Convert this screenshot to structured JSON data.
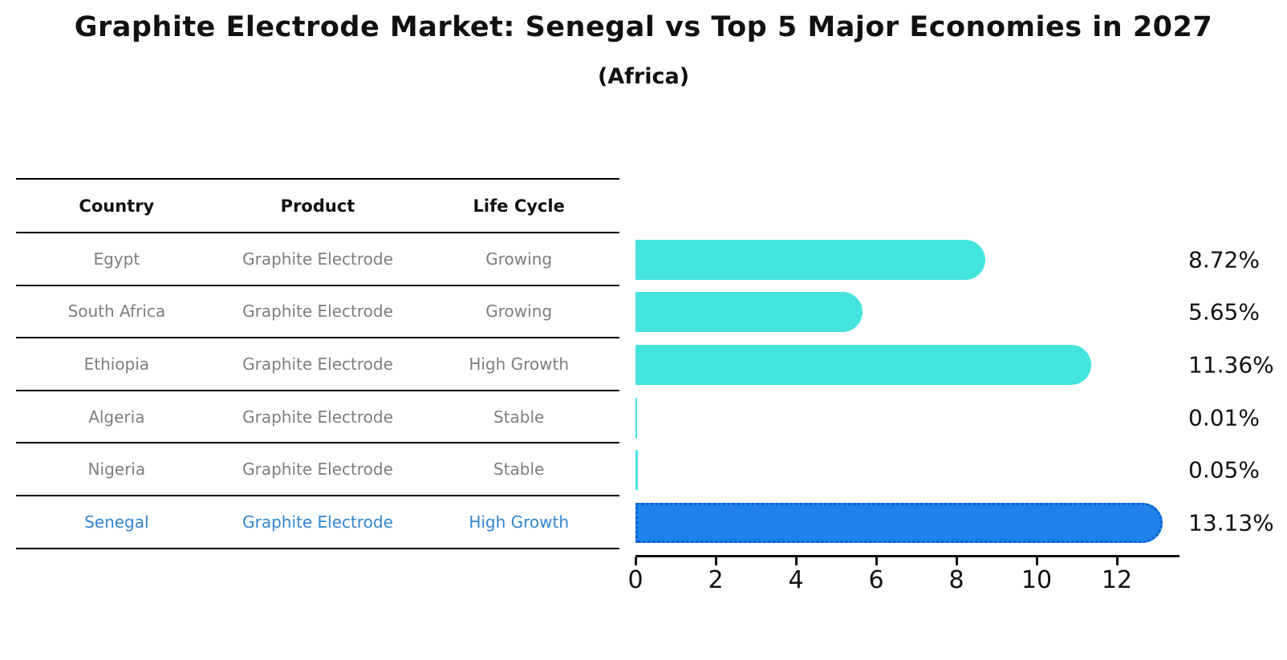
{
  "title": "Graphite Electrode Market: Senegal vs Top 5 Major Economies in 2027",
  "subtitle": "(Africa)",
  "table": {
    "headers": {
      "country": "Country",
      "product": "Product",
      "life_cycle": "Life Cycle"
    },
    "rows": [
      {
        "country": "Egypt",
        "product": "Graphite Electrode",
        "life_cycle": "Growing"
      },
      {
        "country": "South Africa",
        "product": "Graphite Electrode",
        "life_cycle": "Growing"
      },
      {
        "country": "Ethiopia",
        "product": "Graphite Electrode",
        "life_cycle": "High Growth"
      },
      {
        "country": "Algeria",
        "product": "Graphite Electrode",
        "life_cycle": "Stable"
      },
      {
        "country": "Nigeria",
        "product": "Graphite Electrode",
        "life_cycle": "Stable"
      },
      {
        "country": "Senegal",
        "product": "Graphite Electrode",
        "life_cycle": "High Growth"
      }
    ],
    "highlight_row": 5
  },
  "chart_data": {
    "type": "bar",
    "orientation": "horizontal",
    "title": "Graphite Electrode Market: Senegal vs Top 5 Major Economies in 2027",
    "subtitle": "(Africa)",
    "categories": [
      "Egypt",
      "South Africa",
      "Ethiopia",
      "Algeria",
      "Nigeria",
      "Senegal"
    ],
    "values": [
      8.72,
      5.65,
      11.36,
      0.01,
      0.05,
      13.13
    ],
    "labels": [
      "8.72%",
      "5.65%",
      "11.36%",
      "0.01%",
      "0.05%",
      "13.13%"
    ],
    "x_ticks": [
      0,
      2,
      4,
      6,
      8,
      10,
      12
    ],
    "xlim": [
      0,
      13.56
    ],
    "grid": false,
    "legend": "none",
    "highlight_index": 5,
    "bar_color": "#44E4DE",
    "highlight_color": "#1E82E8",
    "highlight_edge_color": "#0b5fd0"
  },
  "colors": {
    "background": "#ffffff",
    "table_line": "#000000",
    "header_text": "#111111",
    "cell_text": "#7e7e7e",
    "highlight_text": "#3186d1",
    "axis_text": "#111111"
  }
}
